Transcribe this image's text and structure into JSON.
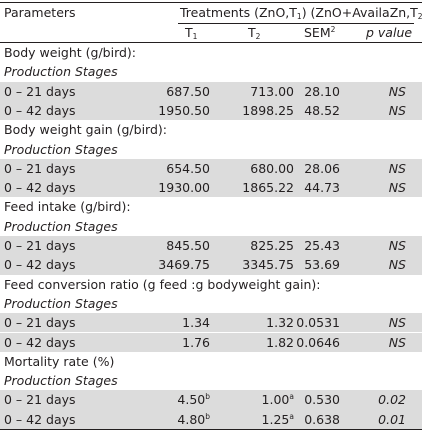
{
  "header": {
    "parameters": "Parameters",
    "treatments_1": "Treatments (ZnO,T",
    "treatments_sub1": "1",
    "treatments_2": ") (ZnO+AvailaZn,T",
    "treatments_sub2": "2",
    "treatments_3": ")",
    "t1": "T",
    "t1_sub": "1",
    "t2": "T",
    "t2_sub": "2",
    "sem": "SEM",
    "sem_sup": "2",
    "p": "p value"
  },
  "sections": [
    {
      "title": "Body weight (g/bird):",
      "stage_label": "Production Stages",
      "rows": [
        {
          "label": "0 – 21 days",
          "t1": "687.50",
          "t1_sup": "",
          "t2": "713.00",
          "t2_sup": "",
          "sem": "28.10",
          "p": "NS"
        },
        {
          "label": "0 – 42 days",
          "t1": "1950.50",
          "t1_sup": "",
          "t2": "1898.25",
          "t2_sup": "",
          "sem": "48.52",
          "p": "NS"
        }
      ]
    },
    {
      "title": "Body weight gain (g/bird):",
      "stage_label": "Production Stages",
      "rows": [
        {
          "label": "0 – 21 days",
          "t1": "654.50",
          "t1_sup": "",
          "t2": "680.00",
          "t2_sup": "",
          "sem": "28.06",
          "p": "NS"
        },
        {
          "label": "0 – 42 days",
          "t1": "1930.00",
          "t1_sup": "",
          "t2": "1865.22",
          "t2_sup": "",
          "sem": "44.73",
          "p": "NS"
        }
      ]
    },
    {
      "title": "Feed intake (g/bird):",
      "stage_label": "Production Stages",
      "rows": [
        {
          "label": "0 – 21 days",
          "t1": "845.50",
          "t1_sup": "",
          "t2": "825.25",
          "t2_sup": "",
          "sem": "25.43",
          "p": "NS"
        },
        {
          "label": "0 – 42 days",
          "t1": "3469.75",
          "t1_sup": "",
          "t2": "3345.75",
          "t2_sup": "",
          "sem": "53.69",
          "p": "NS"
        }
      ]
    },
    {
      "title": "Feed conversion ratio (g feed :g bodyweight gain):",
      "stage_label": "Production Stages",
      "rows": [
        {
          "label": "0 – 21 days",
          "t1": "1.34",
          "t1_sup": "",
          "t2": "1.32",
          "t2_sup": "",
          "sem": "0.0531",
          "p": "NS"
        },
        {
          "label": "0 – 42 days",
          "t1": "1.76",
          "t1_sup": "",
          "t2": "1.82",
          "t2_sup": "",
          "sem": "0.0646",
          "p": "NS"
        }
      ]
    },
    {
      "title": "Mortality rate (%)",
      "stage_label": "Production Stages",
      "rows": [
        {
          "label": "0 – 21 days",
          "t1": "4.50",
          "t1_sup": "b",
          "t2": "1.00",
          "t2_sup": "a",
          "sem": "0.530",
          "p": "0.02"
        },
        {
          "label": "0 – 42 days",
          "t1": "4.80",
          "t1_sup": "b",
          "t2": "1.25",
          "t2_sup": "a",
          "sem": "0.638",
          "p": "0.01"
        }
      ]
    }
  ],
  "colors": {
    "shade": "#dcdcdc",
    "text": "#231f20",
    "rule": "#231f20"
  }
}
